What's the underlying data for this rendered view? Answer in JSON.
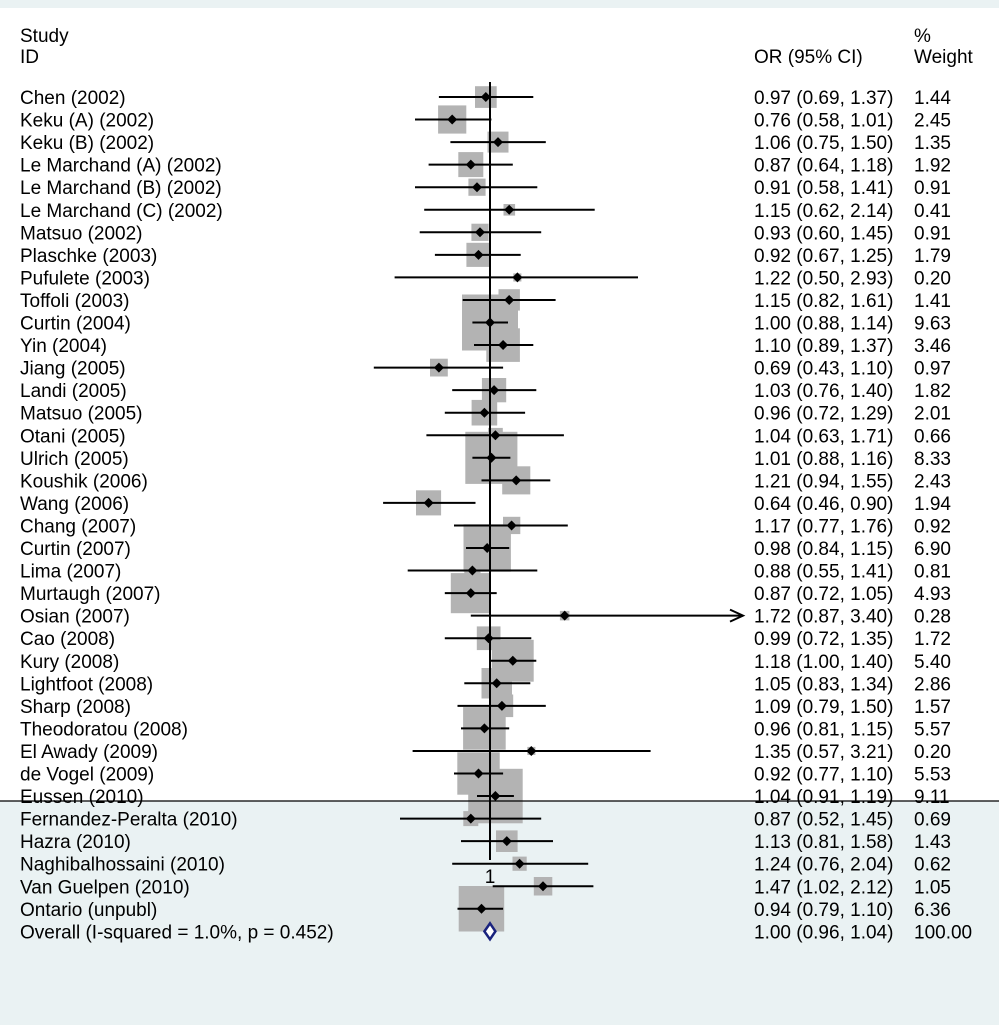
{
  "chart_data": {
    "type": "forest",
    "headers": {
      "study": "Study",
      "id": "ID",
      "ci": "OR (95% CI)",
      "weight_pct": "%",
      "weight": "Weight"
    },
    "null_line": 1,
    "xtick_labels": [
      "1"
    ],
    "x_scale": "log",
    "studies": [
      {
        "label": "Chen (2002)",
        "or": 0.97,
        "lo": 0.69,
        "hi": 1.37,
        "weight": 1.44,
        "ci_text": "0.97 (0.69, 1.37)",
        "weight_text": "1.44"
      },
      {
        "label": "Keku (A) (2002)",
        "or": 0.76,
        "lo": 0.58,
        "hi": 1.01,
        "weight": 2.45,
        "ci_text": "0.76 (0.58, 1.01)",
        "weight_text": "2.45"
      },
      {
        "label": "Keku (B) (2002)",
        "or": 1.06,
        "lo": 0.75,
        "hi": 1.5,
        "weight": 1.35,
        "ci_text": "1.06 (0.75, 1.50)",
        "weight_text": "1.35"
      },
      {
        "label": "Le Marchand (A) (2002)",
        "or": 0.87,
        "lo": 0.64,
        "hi": 1.18,
        "weight": 1.92,
        "ci_text": "0.87 (0.64, 1.18)",
        "weight_text": "1.92"
      },
      {
        "label": "Le Marchand (B) (2002)",
        "or": 0.91,
        "lo": 0.58,
        "hi": 1.41,
        "weight": 0.91,
        "ci_text": "0.91 (0.58, 1.41)",
        "weight_text": "0.91"
      },
      {
        "label": "Le Marchand (C) (2002)",
        "or": 1.15,
        "lo": 0.62,
        "hi": 2.14,
        "weight": 0.41,
        "ci_text": "1.15 (0.62, 2.14)",
        "weight_text": "0.41"
      },
      {
        "label": "Matsuo (2002)",
        "or": 0.93,
        "lo": 0.6,
        "hi": 1.45,
        "weight": 0.91,
        "ci_text": "0.93 (0.60, 1.45)",
        "weight_text": "0.91"
      },
      {
        "label": "Plaschke (2003)",
        "or": 0.92,
        "lo": 0.67,
        "hi": 1.25,
        "weight": 1.79,
        "ci_text": "0.92 (0.67, 1.25)",
        "weight_text": "1.79"
      },
      {
        "label": "Pufulete (2003)",
        "or": 1.22,
        "lo": 0.5,
        "hi": 2.93,
        "weight": 0.2,
        "ci_text": "1.22 (0.50, 2.93)",
        "weight_text": "0.20"
      },
      {
        "label": "Toffoli (2003)",
        "or": 1.15,
        "lo": 0.82,
        "hi": 1.61,
        "weight": 1.41,
        "ci_text": "1.15 (0.82, 1.61)",
        "weight_text": "1.41"
      },
      {
        "label": "Curtin (2004)",
        "or": 1.0,
        "lo": 0.88,
        "hi": 1.14,
        "weight": 9.63,
        "ci_text": "1.00 (0.88, 1.14)",
        "weight_text": "9.63"
      },
      {
        "label": "Yin (2004)",
        "or": 1.1,
        "lo": 0.89,
        "hi": 1.37,
        "weight": 3.46,
        "ci_text": "1.10 (0.89, 1.37)",
        "weight_text": "3.46"
      },
      {
        "label": "Jiang (2005)",
        "or": 0.69,
        "lo": 0.43,
        "hi": 1.1,
        "weight": 0.97,
        "ci_text": "0.69 (0.43, 1.10)",
        "weight_text": "0.97"
      },
      {
        "label": "Landi (2005)",
        "or": 1.03,
        "lo": 0.76,
        "hi": 1.4,
        "weight": 1.82,
        "ci_text": "1.03 (0.76, 1.40)",
        "weight_text": "1.82"
      },
      {
        "label": "Matsuo (2005)",
        "or": 0.96,
        "lo": 0.72,
        "hi": 1.29,
        "weight": 2.01,
        "ci_text": "0.96 (0.72, 1.29)",
        "weight_text": "2.01"
      },
      {
        "label": "Otani (2005)",
        "or": 1.04,
        "lo": 0.63,
        "hi": 1.71,
        "weight": 0.66,
        "ci_text": "1.04 (0.63, 1.71)",
        "weight_text": "0.66"
      },
      {
        "label": "Ulrich (2005)",
        "or": 1.01,
        "lo": 0.88,
        "hi": 1.16,
        "weight": 8.33,
        "ci_text": "1.01 (0.88, 1.16)",
        "weight_text": "8.33"
      },
      {
        "label": "Koushik (2006)",
        "or": 1.21,
        "lo": 0.94,
        "hi": 1.55,
        "weight": 2.43,
        "ci_text": "1.21 (0.94, 1.55)",
        "weight_text": "2.43"
      },
      {
        "label": "Wang (2006)",
        "or": 0.64,
        "lo": 0.46,
        "hi": 0.9,
        "weight": 1.94,
        "ci_text": "0.64 (0.46, 0.90)",
        "weight_text": "1.94"
      },
      {
        "label": "Chang (2007)",
        "or": 1.17,
        "lo": 0.77,
        "hi": 1.76,
        "weight": 0.92,
        "ci_text": "1.17 (0.77, 1.76)",
        "weight_text": "0.92"
      },
      {
        "label": "Curtin (2007)",
        "or": 0.98,
        "lo": 0.84,
        "hi": 1.15,
        "weight": 6.9,
        "ci_text": "0.98 (0.84, 1.15)",
        "weight_text": "6.90"
      },
      {
        "label": "Lima (2007)",
        "or": 0.88,
        "lo": 0.55,
        "hi": 1.41,
        "weight": 0.81,
        "ci_text": "0.88 (0.55, 1.41)",
        "weight_text": "0.81"
      },
      {
        "label": "Murtaugh (2007)",
        "or": 0.87,
        "lo": 0.72,
        "hi": 1.05,
        "weight": 4.93,
        "ci_text": "0.87 (0.72, 1.05)",
        "weight_text": "4.93"
      },
      {
        "label": "Osian (2007)",
        "or": 1.72,
        "lo": 0.87,
        "hi": 3.4,
        "weight": 0.28,
        "ci_text": "1.72 (0.87, 3.40)",
        "weight_text": "0.28",
        "arrow_right": true
      },
      {
        "label": "Cao (2008)",
        "or": 0.99,
        "lo": 0.72,
        "hi": 1.35,
        "weight": 1.72,
        "ci_text": "0.99 (0.72, 1.35)",
        "weight_text": "1.72"
      },
      {
        "label": "Kury (2008)",
        "or": 1.18,
        "lo": 1.0,
        "hi": 1.4,
        "weight": 5.4,
        "ci_text": "1.18 (1.00, 1.40)",
        "weight_text": "5.40"
      },
      {
        "label": "Lightfoot (2008)",
        "or": 1.05,
        "lo": 0.83,
        "hi": 1.34,
        "weight": 2.86,
        "ci_text": "1.05 (0.83, 1.34)",
        "weight_text": "2.86"
      },
      {
        "label": "Sharp (2008)",
        "or": 1.09,
        "lo": 0.79,
        "hi": 1.5,
        "weight": 1.57,
        "ci_text": "1.09 (0.79, 1.50)",
        "weight_text": "1.57"
      },
      {
        "label": "Theodoratou (2008)",
        "or": 0.96,
        "lo": 0.81,
        "hi": 1.15,
        "weight": 5.57,
        "ci_text": "0.96 (0.81, 1.15)",
        "weight_text": "5.57"
      },
      {
        "label": "El Awady (2009)",
        "or": 1.35,
        "lo": 0.57,
        "hi": 3.21,
        "weight": 0.2,
        "ci_text": "1.35 (0.57, 3.21)",
        "weight_text": "0.20"
      },
      {
        "label": "de Vogel (2009)",
        "or": 0.92,
        "lo": 0.77,
        "hi": 1.1,
        "weight": 5.53,
        "ci_text": "0.92 (0.77, 1.10)",
        "weight_text": "5.53"
      },
      {
        "label": "Eussen (2010)",
        "or": 1.04,
        "lo": 0.91,
        "hi": 1.19,
        "weight": 9.11,
        "ci_text": "1.04 (0.91, 1.19)",
        "weight_text": "9.11"
      },
      {
        "label": "Fernandez-Peralta (2010)",
        "or": 0.87,
        "lo": 0.52,
        "hi": 1.45,
        "weight": 0.69,
        "ci_text": "0.87 (0.52, 1.45)",
        "weight_text": "0.69"
      },
      {
        "label": "Hazra (2010)",
        "or": 1.13,
        "lo": 0.81,
        "hi": 1.58,
        "weight": 1.43,
        "ci_text": "1.13 (0.81, 1.58)",
        "weight_text": "1.43"
      },
      {
        "label": "Naghibalhossaini (2010)",
        "or": 1.24,
        "lo": 0.76,
        "hi": 2.04,
        "weight": 0.62,
        "ci_text": "1.24 (0.76, 2.04)",
        "weight_text": "0.62"
      },
      {
        "label": "Van Guelpen (2010)",
        "or": 1.47,
        "lo": 1.02,
        "hi": 2.12,
        "weight": 1.05,
        "ci_text": "1.47 (1.02, 2.12)",
        "weight_text": "1.05"
      },
      {
        "label": "Ontario (unpubl)",
        "or": 0.94,
        "lo": 0.79,
        "hi": 1.1,
        "weight": 6.36,
        "ci_text": "0.94 (0.79, 1.10)",
        "weight_text": "6.36"
      }
    ],
    "overall": {
      "label": "Overall  (I-squared = 1.0%, p = 0.452)",
      "or": 1.0,
      "lo": 0.96,
      "hi": 1.04,
      "weight": 100.0,
      "ci_text": "1.00 (0.96, 1.04)",
      "weight_text": "100.00"
    },
    "colors": {
      "background": "#eaf2f3",
      "plot_background": "#ffffff",
      "weight_box": "#b3b3b3",
      "point": "#000000",
      "ci_line": "#000000",
      "overall_diamond": "#1a237e"
    }
  }
}
